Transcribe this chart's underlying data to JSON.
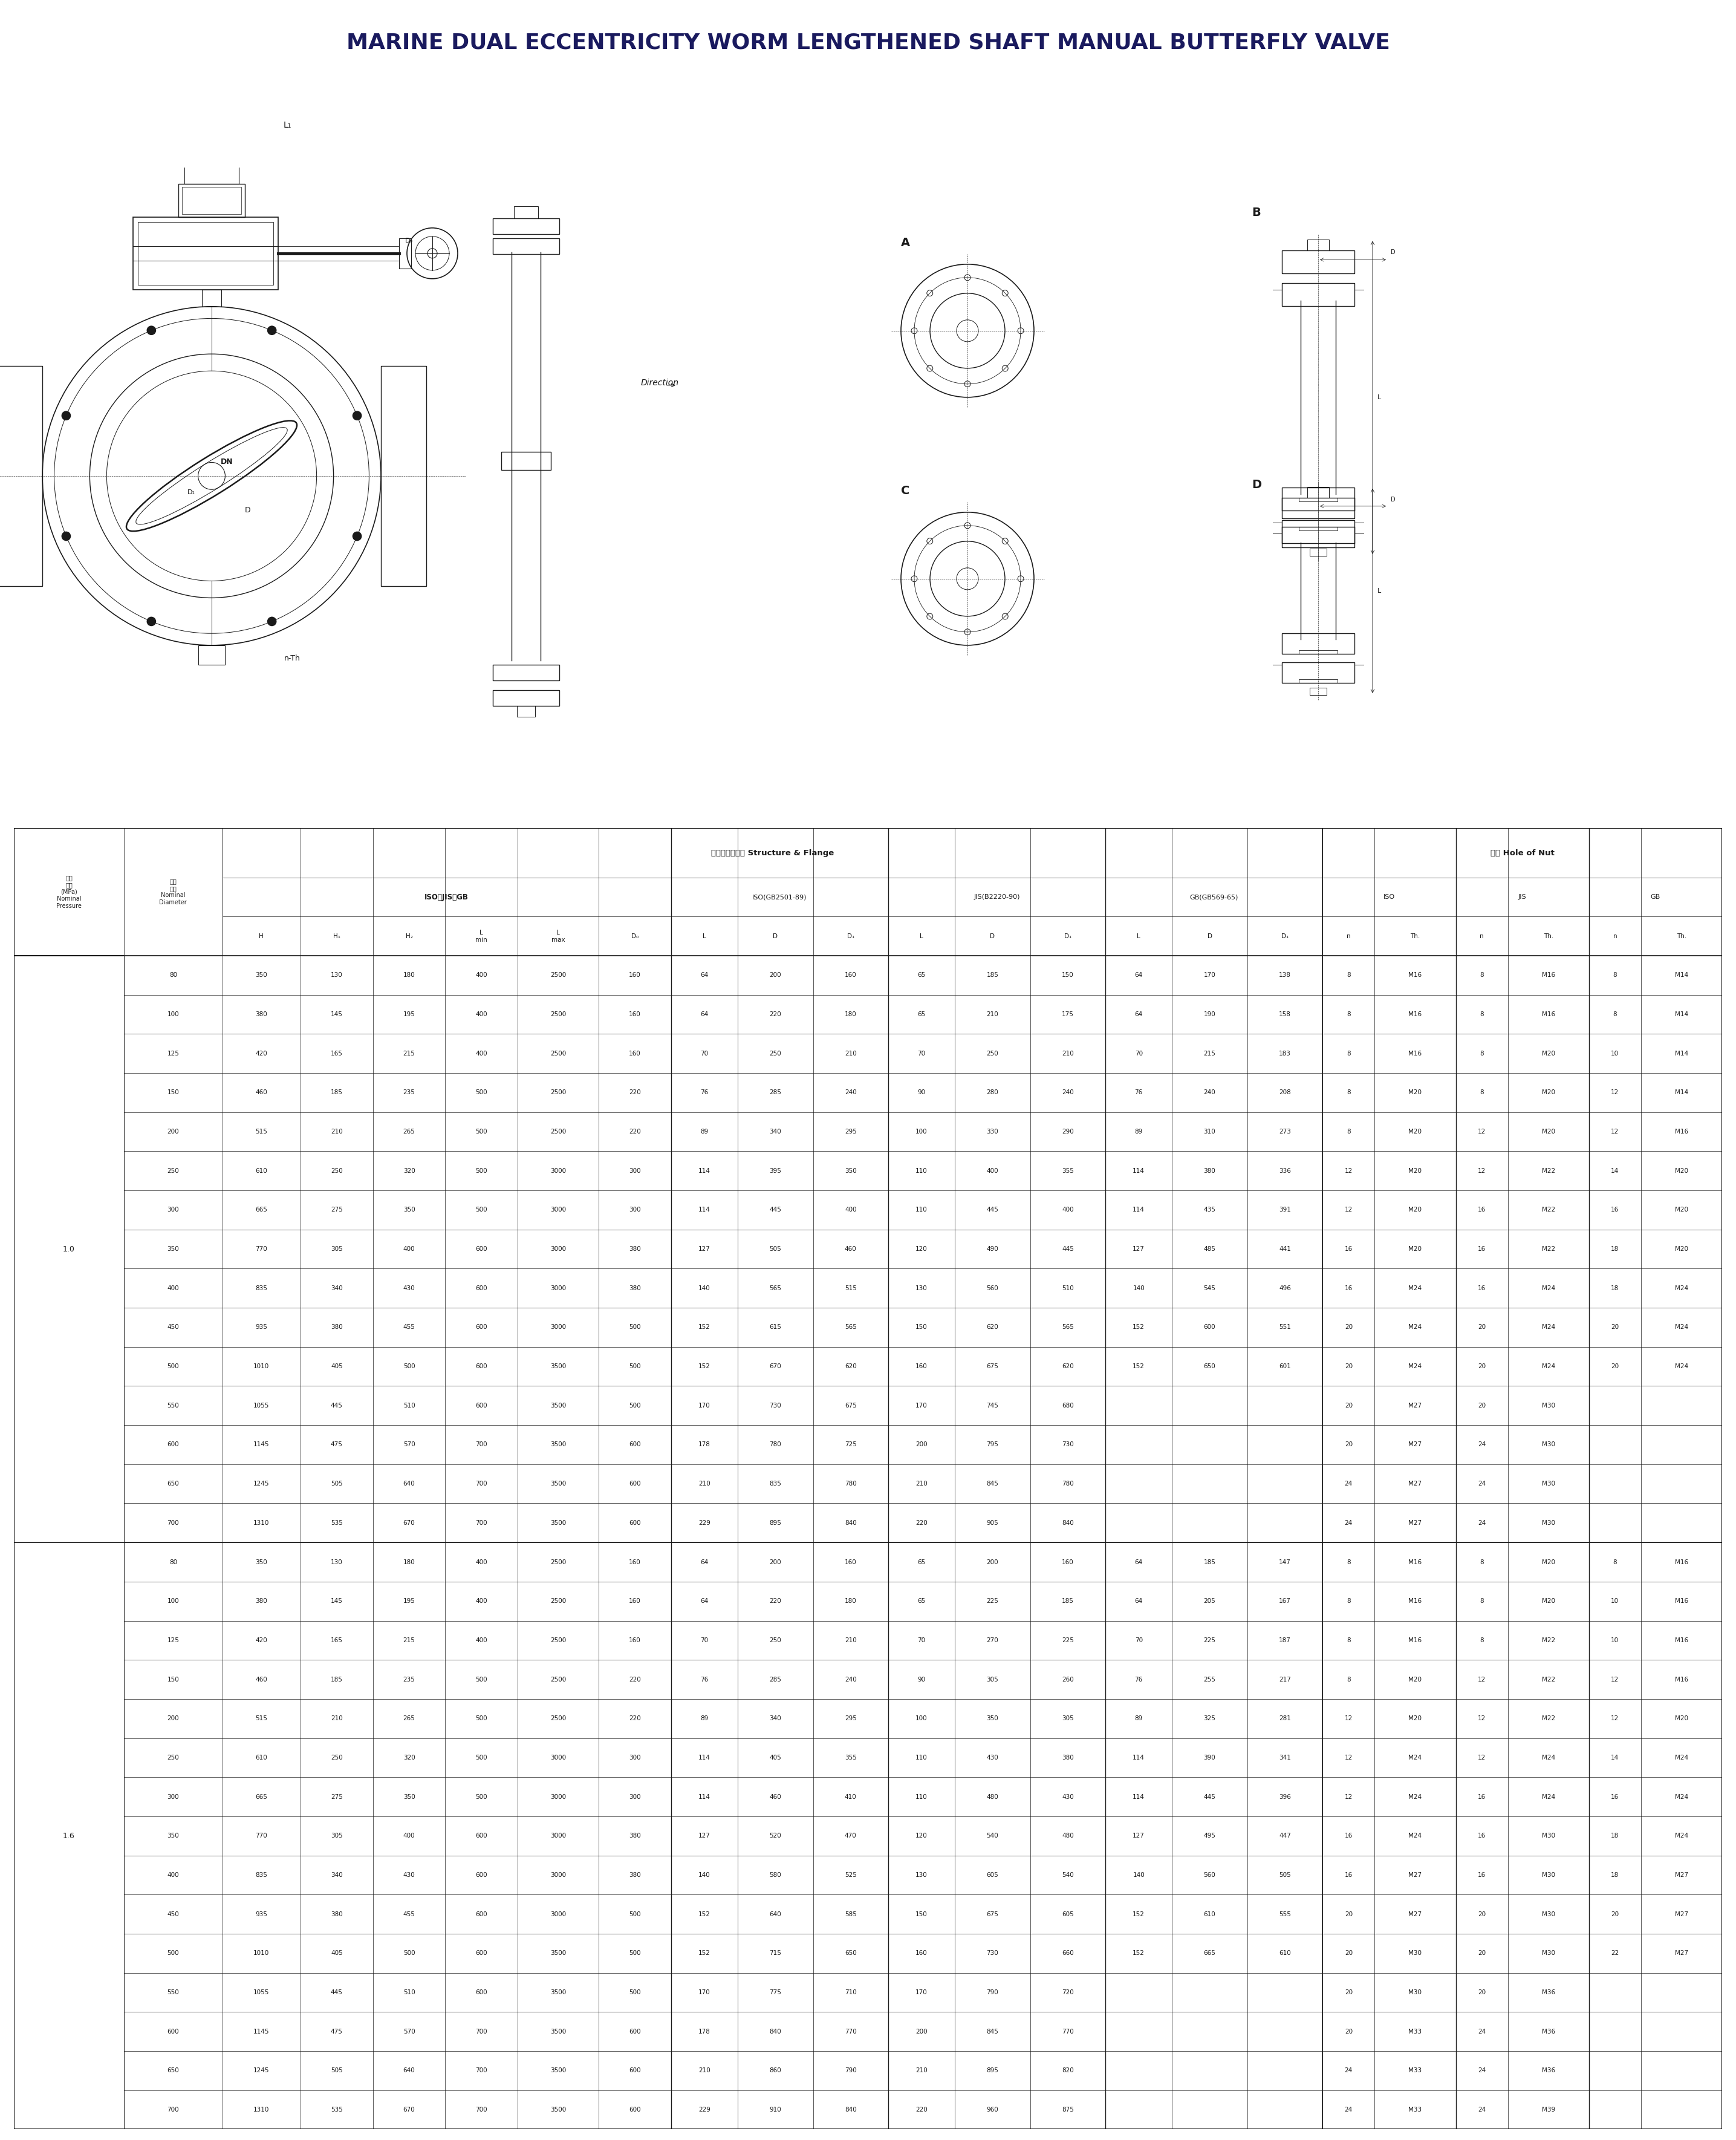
{
  "title": "MARINE DUAL ECCENTRICITY WORM LENGTHENED SHAFT MANUAL BUTTERFLY VALVE",
  "title_fontsize": 26,
  "bg_color": "#ffffff",
  "text_color": "#1a1a5e",
  "rows_1_0": [
    [
      80,
      350,
      130,
      180,
      400,
      2500,
      160,
      64,
      200,
      160,
      65,
      185,
      150,
      64,
      170,
      138,
      8,
      "M16",
      8,
      "M16",
      8,
      "M14"
    ],
    [
      100,
      380,
      145,
      195,
      400,
      2500,
      160,
      64,
      220,
      180,
      65,
      210,
      175,
      64,
      190,
      158,
      8,
      "M16",
      8,
      "M16",
      8,
      "M14"
    ],
    [
      125,
      420,
      165,
      215,
      400,
      2500,
      160,
      70,
      250,
      210,
      70,
      250,
      210,
      70,
      215,
      183,
      8,
      "M16",
      8,
      "M20",
      10,
      "M14"
    ],
    [
      150,
      460,
      185,
      235,
      500,
      2500,
      220,
      76,
      285,
      240,
      90,
      280,
      240,
      76,
      240,
      208,
      8,
      "M20",
      8,
      "M20",
      12,
      "M14"
    ],
    [
      200,
      515,
      210,
      265,
      500,
      2500,
      220,
      89,
      340,
      295,
      100,
      330,
      290,
      89,
      310,
      273,
      8,
      "M20",
      12,
      "M20",
      12,
      "M16"
    ],
    [
      250,
      610,
      250,
      320,
      500,
      3000,
      300,
      114,
      395,
      350,
      110,
      400,
      355,
      114,
      380,
      336,
      12,
      "M20",
      12,
      "M22",
      14,
      "M20"
    ],
    [
      300,
      665,
      275,
      350,
      500,
      3000,
      300,
      114,
      445,
      400,
      110,
      445,
      400,
      114,
      435,
      391,
      12,
      "M20",
      16,
      "M22",
      16,
      "M20"
    ],
    [
      350,
      770,
      305,
      400,
      600,
      3000,
      380,
      127,
      505,
      460,
      120,
      490,
      445,
      127,
      485,
      441,
      16,
      "M20",
      16,
      "M22",
      18,
      "M20"
    ],
    [
      400,
      835,
      340,
      430,
      600,
      3000,
      380,
      140,
      565,
      515,
      130,
      560,
      510,
      140,
      545,
      496,
      16,
      "M24",
      16,
      "M24",
      18,
      "M24"
    ],
    [
      450,
      935,
      380,
      455,
      600,
      3000,
      500,
      152,
      615,
      565,
      150,
      620,
      565,
      152,
      600,
      551,
      20,
      "M24",
      20,
      "M24",
      20,
      "M24"
    ],
    [
      500,
      1010,
      405,
      500,
      600,
      3500,
      500,
      152,
      670,
      620,
      160,
      675,
      620,
      152,
      650,
      601,
      20,
      "M24",
      20,
      "M24",
      20,
      "M24"
    ],
    [
      550,
      1055,
      445,
      510,
      600,
      3500,
      500,
      170,
      730,
      675,
      170,
      745,
      680,
      "",
      "",
      "",
      20,
      "M27",
      20,
      "M30",
      "",
      ""
    ],
    [
      600,
      1145,
      475,
      570,
      700,
      3500,
      600,
      178,
      780,
      725,
      200,
      795,
      730,
      "",
      "",
      "",
      20,
      "M27",
      24,
      "M30",
      "",
      ""
    ],
    [
      650,
      1245,
      505,
      640,
      700,
      3500,
      600,
      210,
      835,
      780,
      210,
      845,
      780,
      "",
      "",
      "",
      24,
      "M27",
      24,
      "M30",
      "",
      ""
    ],
    [
      700,
      1310,
      535,
      670,
      700,
      3500,
      600,
      229,
      895,
      840,
      220,
      905,
      840,
      "",
      "",
      "",
      24,
      "M27",
      24,
      "M30",
      "",
      ""
    ]
  ],
  "rows_1_6": [
    [
      80,
      350,
      130,
      180,
      400,
      2500,
      160,
      64,
      200,
      160,
      65,
      200,
      160,
      64,
      185,
      147,
      8,
      "M16",
      8,
      "M20",
      8,
      "M16"
    ],
    [
      100,
      380,
      145,
      195,
      400,
      2500,
      160,
      64,
      220,
      180,
      65,
      225,
      185,
      64,
      205,
      167,
      8,
      "M16",
      8,
      "M20",
      10,
      "M16"
    ],
    [
      125,
      420,
      165,
      215,
      400,
      2500,
      160,
      70,
      250,
      210,
      70,
      270,
      225,
      70,
      225,
      187,
      8,
      "M16",
      8,
      "M22",
      10,
      "M16"
    ],
    [
      150,
      460,
      185,
      235,
      500,
      2500,
      220,
      76,
      285,
      240,
      90,
      305,
      260,
      76,
      255,
      217,
      8,
      "M20",
      12,
      "M22",
      12,
      "M16"
    ],
    [
      200,
      515,
      210,
      265,
      500,
      2500,
      220,
      89,
      340,
      295,
      100,
      350,
      305,
      89,
      325,
      281,
      12,
      "M20",
      12,
      "M22",
      12,
      "M20"
    ],
    [
      250,
      610,
      250,
      320,
      500,
      3000,
      300,
      114,
      405,
      355,
      110,
      430,
      380,
      114,
      390,
      341,
      12,
      "M24",
      12,
      "M24",
      14,
      "M24"
    ],
    [
      300,
      665,
      275,
      350,
      500,
      3000,
      300,
      114,
      460,
      410,
      110,
      480,
      430,
      114,
      445,
      396,
      12,
      "M24",
      16,
      "M24",
      16,
      "M24"
    ],
    [
      350,
      770,
      305,
      400,
      600,
      3000,
      380,
      127,
      520,
      470,
      120,
      540,
      480,
      127,
      495,
      447,
      16,
      "M24",
      16,
      "M30",
      18,
      "M24"
    ],
    [
      400,
      835,
      340,
      430,
      600,
      3000,
      380,
      140,
      580,
      525,
      130,
      605,
      540,
      140,
      560,
      505,
      16,
      "M27",
      16,
      "M30",
      18,
      "M27"
    ],
    [
      450,
      935,
      380,
      455,
      600,
      3000,
      500,
      152,
      640,
      585,
      150,
      675,
      605,
      152,
      610,
      555,
      20,
      "M27",
      20,
      "M30",
      20,
      "M27"
    ],
    [
      500,
      1010,
      405,
      500,
      600,
      3500,
      500,
      152,
      715,
      650,
      160,
      730,
      660,
      152,
      665,
      610,
      20,
      "M30",
      20,
      "M30",
      22,
      "M27"
    ],
    [
      550,
      1055,
      445,
      510,
      600,
      3500,
      500,
      170,
      775,
      710,
      170,
      790,
      720,
      "",
      "",
      "",
      20,
      "M30",
      20,
      "M36",
      "",
      ""
    ],
    [
      600,
      1145,
      475,
      570,
      700,
      3500,
      600,
      178,
      840,
      770,
      200,
      845,
      770,
      "",
      "",
      "",
      20,
      "M33",
      24,
      "M36",
      "",
      ""
    ],
    [
      650,
      1245,
      505,
      640,
      700,
      3500,
      600,
      210,
      860,
      790,
      210,
      895,
      820,
      "",
      "",
      "",
      24,
      "M33",
      24,
      "M36",
      "",
      ""
    ],
    [
      700,
      1310,
      535,
      670,
      700,
      3500,
      600,
      229,
      910,
      840,
      220,
      960,
      875,
      "",
      "",
      "",
      24,
      "M33",
      24,
      "M39",
      "",
      ""
    ]
  ]
}
